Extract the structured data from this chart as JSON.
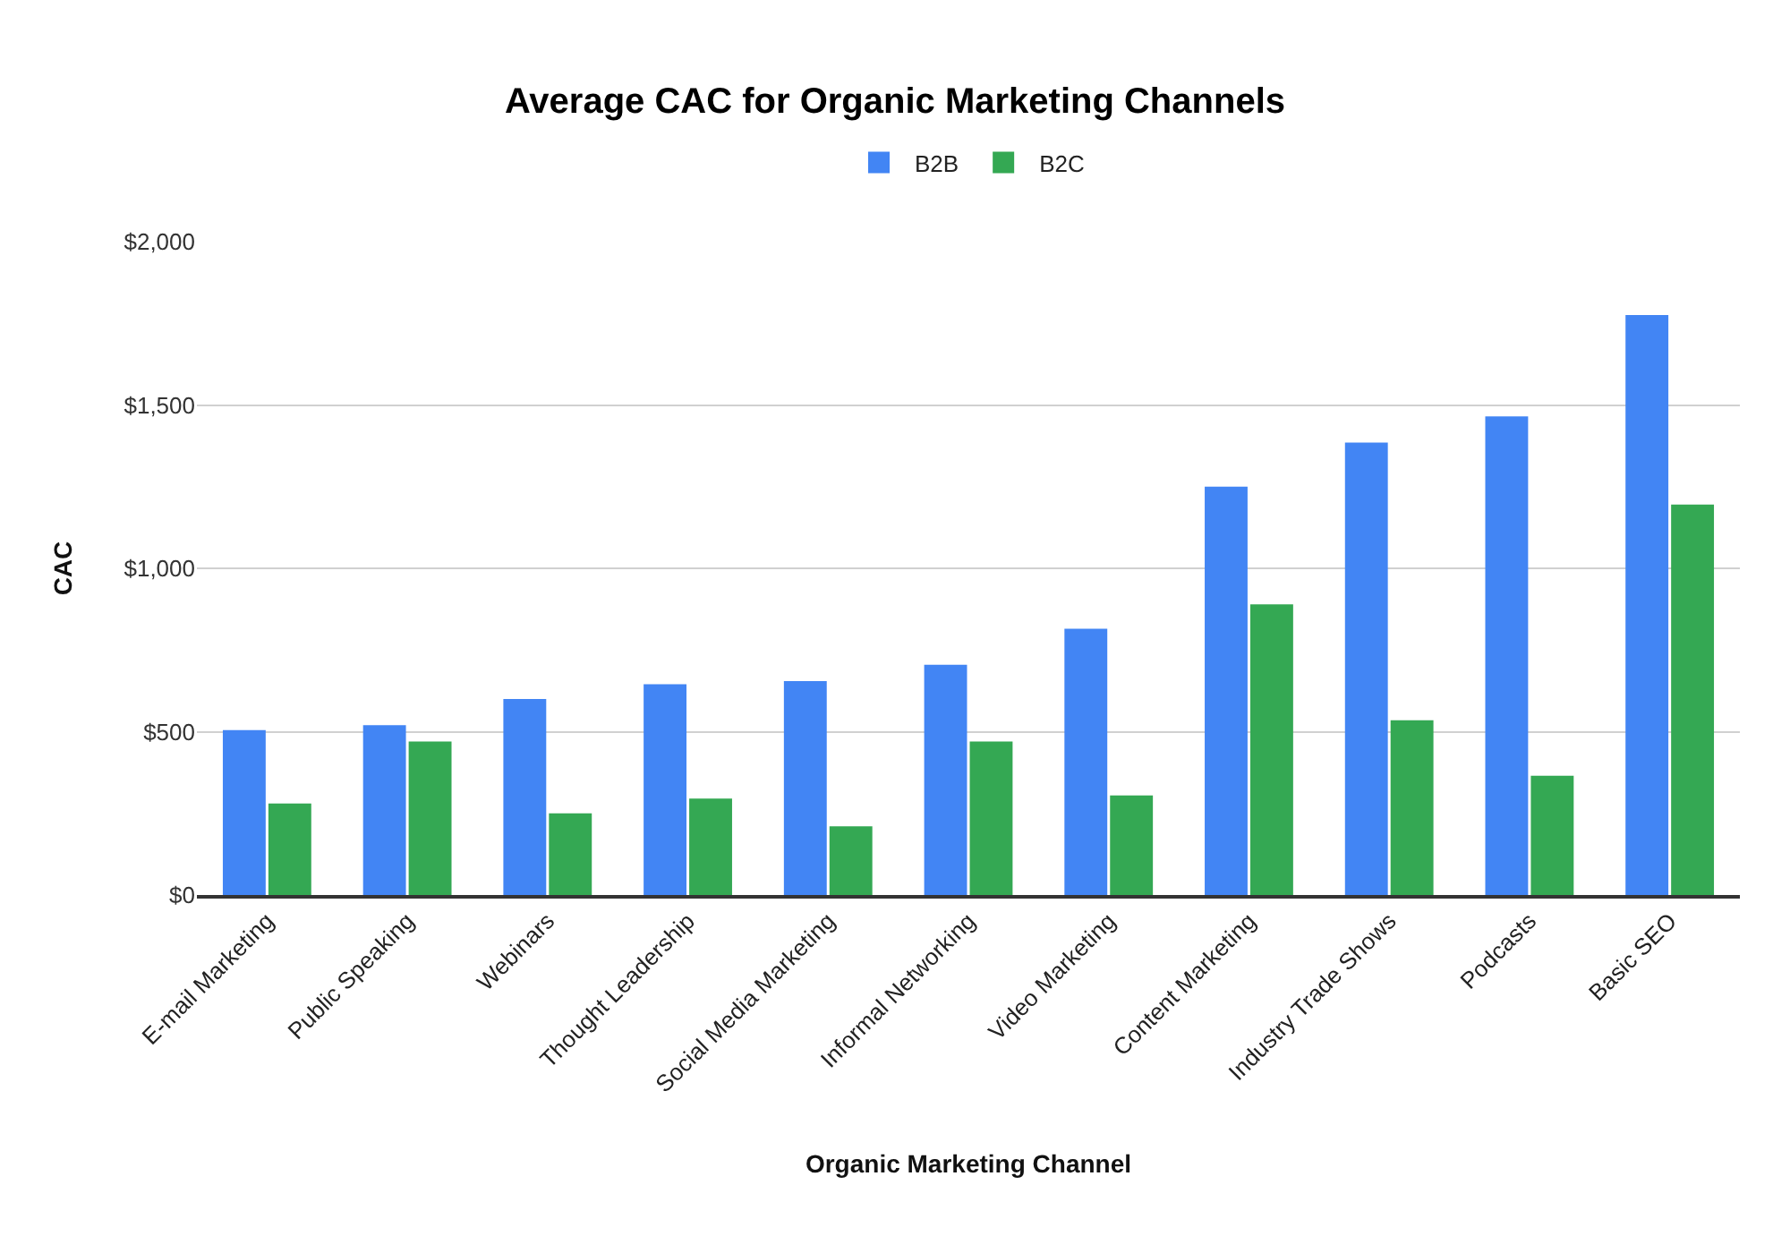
{
  "chart_data": {
    "type": "bar",
    "title": "Average CAC for Organic Marketing Channels",
    "xlabel": "Organic Marketing Channel",
    "ylabel": "CAC",
    "categories": [
      "E-mail Marketing",
      "Public Speaking",
      "Webinars",
      "Thought Leadership",
      "Social Media Marketing",
      "Informal Networking",
      "Video Marketing",
      "Content Marketing",
      "Industry Trade Shows",
      "Podcasts",
      "Basic SEO"
    ],
    "series": [
      {
        "name": "B2B",
        "color": "#4285f4",
        "values": [
          505,
          520,
          600,
          645,
          655,
          705,
          815,
          1250,
          1385,
          1465,
          1775
        ]
      },
      {
        "name": "B2C",
        "color": "#34a853",
        "values": [
          280,
          470,
          250,
          295,
          210,
          470,
          305,
          890,
          535,
          365,
          1195
        ]
      }
    ],
    "ylim": [
      0,
      2000
    ],
    "yticks": [
      {
        "value": 0,
        "label": "$0"
      },
      {
        "value": 500,
        "label": "$500"
      },
      {
        "value": 1000,
        "label": "$1,000"
      },
      {
        "value": 1500,
        "label": "$1,500"
      },
      {
        "value": 2000,
        "label": "$2,000"
      }
    ],
    "grid": "y",
    "legend": "top"
  }
}
